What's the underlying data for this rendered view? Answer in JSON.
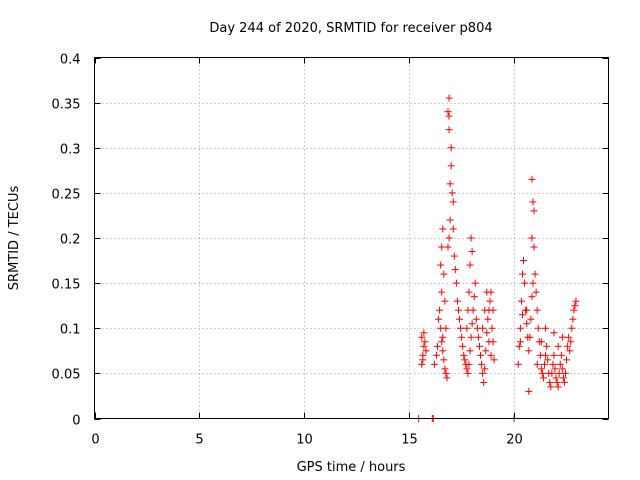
{
  "chart_data": {
    "type": "scatter",
    "title": "Day 244 of 2020, SRMTID for receiver p804",
    "xlabel": "GPS time / hours",
    "ylabel": "SRMTID / TECUs",
    "xlim": [
      0,
      24.5
    ],
    "ylim": [
      0,
      0.4
    ],
    "xticks": [
      "0",
      "5",
      "10",
      "15",
      "20"
    ],
    "yticks": [
      "0",
      "0.05",
      "0.1",
      "0.15",
      "0.2",
      "0.25",
      "0.3",
      "0.35",
      "0.4"
    ],
    "grid": true,
    "marker": "+",
    "color": "#ff0000",
    "series": [
      {
        "name": "SRMTID",
        "points": [
          [
            15.45,
            0.0
          ],
          [
            16.1,
            0.0
          ],
          [
            16.15,
            0.0
          ],
          [
            20.0,
            0.0
          ],
          [
            15.6,
            0.06
          ],
          [
            15.65,
            0.07
          ],
          [
            15.7,
            0.08
          ],
          [
            15.75,
            0.085
          ],
          [
            15.6,
            0.09
          ],
          [
            15.7,
            0.095
          ],
          [
            15.8,
            0.075
          ],
          [
            15.65,
            0.065
          ],
          [
            16.2,
            0.06
          ],
          [
            16.3,
            0.07
          ],
          [
            16.35,
            0.08
          ],
          [
            16.4,
            0.11
          ],
          [
            16.45,
            0.12
          ],
          [
            16.5,
            0.1
          ],
          [
            16.55,
            0.085
          ],
          [
            16.6,
            0.075
          ],
          [
            16.65,
            0.065
          ],
          [
            16.7,
            0.055
          ],
          [
            16.75,
            0.05
          ],
          [
            16.8,
            0.045
          ],
          [
            16.6,
            0.09
          ],
          [
            16.55,
            0.14
          ],
          [
            16.5,
            0.17
          ],
          [
            16.55,
            0.19
          ],
          [
            16.6,
            0.21
          ],
          [
            16.65,
            0.16
          ],
          [
            16.7,
            0.13
          ],
          [
            16.75,
            0.1
          ],
          [
            16.85,
            0.19
          ],
          [
            16.9,
            0.2
          ],
          [
            16.95,
            0.22
          ],
          [
            16.95,
            0.26
          ],
          [
            17.0,
            0.28
          ],
          [
            17.0,
            0.3
          ],
          [
            16.9,
            0.32
          ],
          [
            16.9,
            0.335
          ],
          [
            16.9,
            0.355
          ],
          [
            16.85,
            0.34
          ],
          [
            17.05,
            0.25
          ],
          [
            17.1,
            0.24
          ],
          [
            17.1,
            0.21
          ],
          [
            17.15,
            0.18
          ],
          [
            17.2,
            0.165
          ],
          [
            17.25,
            0.15
          ],
          [
            17.3,
            0.13
          ],
          [
            17.35,
            0.12
          ],
          [
            17.4,
            0.11
          ],
          [
            17.45,
            0.1
          ],
          [
            17.5,
            0.09
          ],
          [
            17.55,
            0.08
          ],
          [
            17.6,
            0.07
          ],
          [
            17.65,
            0.065
          ],
          [
            17.7,
            0.06
          ],
          [
            17.75,
            0.055
          ],
          [
            17.8,
            0.05
          ],
          [
            17.85,
            0.06
          ],
          [
            17.9,
            0.075
          ],
          [
            17.95,
            0.09
          ],
          [
            18.0,
            0.105
          ],
          [
            18.05,
            0.12
          ],
          [
            18.1,
            0.135
          ],
          [
            18.15,
            0.15
          ],
          [
            17.9,
            0.17
          ],
          [
            17.95,
            0.2
          ],
          [
            18.0,
            0.185
          ],
          [
            17.85,
            0.14
          ],
          [
            17.8,
            0.12
          ],
          [
            17.75,
            0.1
          ],
          [
            18.2,
            0.11
          ],
          [
            18.25,
            0.1
          ],
          [
            18.3,
            0.09
          ],
          [
            18.35,
            0.08
          ],
          [
            18.4,
            0.07
          ],
          [
            18.45,
            0.06
          ],
          [
            18.5,
            0.05
          ],
          [
            18.55,
            0.04
          ],
          [
            18.6,
            0.055
          ],
          [
            18.65,
            0.075
          ],
          [
            18.7,
            0.095
          ],
          [
            18.75,
            0.11
          ],
          [
            18.8,
            0.12
          ],
          [
            18.85,
            0.13
          ],
          [
            18.9,
            0.14
          ],
          [
            18.95,
            0.1
          ],
          [
            19.0,
            0.085
          ],
          [
            19.05,
            0.065
          ],
          [
            18.7,
            0.14
          ],
          [
            18.6,
            0.12
          ],
          [
            18.5,
            0.1
          ],
          [
            19.0,
            0.12
          ],
          [
            18.9,
            0.07
          ],
          [
            18.8,
            0.085
          ],
          [
            20.2,
            0.06
          ],
          [
            20.25,
            0.08
          ],
          [
            20.3,
            0.1
          ],
          [
            20.35,
            0.13
          ],
          [
            20.4,
            0.16
          ],
          [
            20.45,
            0.175
          ],
          [
            20.5,
            0.15
          ],
          [
            20.55,
            0.12
          ],
          [
            20.6,
            0.105
          ],
          [
            20.65,
            0.09
          ],
          [
            20.7,
            0.075
          ],
          [
            20.75,
            0.09
          ],
          [
            20.8,
            0.11
          ],
          [
            20.85,
            0.135
          ],
          [
            20.9,
            0.15
          ],
          [
            20.85,
            0.2
          ],
          [
            20.9,
            0.24
          ],
          [
            20.85,
            0.265
          ],
          [
            20.95,
            0.23
          ],
          [
            20.95,
            0.19
          ],
          [
            21.0,
            0.16
          ],
          [
            21.05,
            0.14
          ],
          [
            21.1,
            0.12
          ],
          [
            21.15,
            0.1
          ],
          [
            21.2,
            0.085
          ],
          [
            21.25,
            0.07
          ],
          [
            21.3,
            0.055
          ],
          [
            21.35,
            0.05
          ],
          [
            21.4,
            0.045
          ],
          [
            21.45,
            0.06
          ],
          [
            21.5,
            0.07
          ],
          [
            21.55,
            0.08
          ],
          [
            21.6,
            0.065
          ],
          [
            21.65,
            0.05
          ],
          [
            21.7,
            0.04
          ],
          [
            21.75,
            0.035
          ],
          [
            21.8,
            0.05
          ],
          [
            21.85,
            0.06
          ],
          [
            21.9,
            0.07
          ],
          [
            21.95,
            0.055
          ],
          [
            22.0,
            0.045
          ],
          [
            22.05,
            0.04
          ],
          [
            22.1,
            0.035
          ],
          [
            22.15,
            0.05
          ],
          [
            22.2,
            0.06
          ],
          [
            22.25,
            0.07
          ],
          [
            22.3,
            0.055
          ],
          [
            22.35,
            0.045
          ],
          [
            22.4,
            0.04
          ],
          [
            22.45,
            0.05
          ],
          [
            22.5,
            0.065
          ],
          [
            22.55,
            0.08
          ],
          [
            22.6,
            0.09
          ],
          [
            22.65,
            0.075
          ],
          [
            22.7,
            0.085
          ],
          [
            22.75,
            0.1
          ],
          [
            22.8,
            0.11
          ],
          [
            22.85,
            0.12
          ],
          [
            22.9,
            0.125
          ],
          [
            22.95,
            0.13
          ],
          [
            22.3,
            0.09
          ],
          [
            22.1,
            0.08
          ],
          [
            21.9,
            0.095
          ],
          [
            21.5,
            0.1
          ],
          [
            21.3,
            0.085
          ],
          [
            21.1,
            0.06
          ],
          [
            20.7,
            0.03
          ],
          [
            20.6,
            0.12
          ],
          [
            20.4,
            0.115
          ],
          [
            20.3,
            0.085
          ]
        ]
      }
    ]
  }
}
